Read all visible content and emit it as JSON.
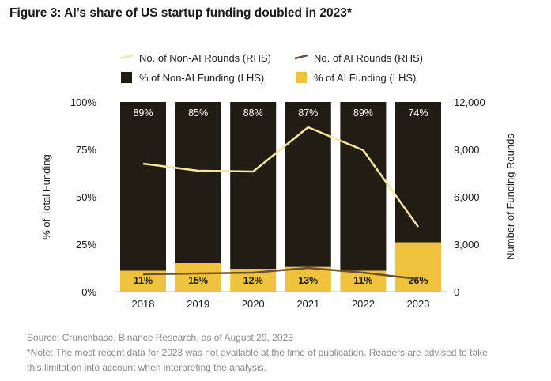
{
  "title": "Figure 3: AI’s share of US startup funding doubled in 2023*",
  "source_note": "Source: Crunchbase, Binance Research, as of August 29, 2023",
  "footnote_line1": "*Note: The most recent data for 2023 was not available at the time of publication. Readers are advised to take",
  "footnote_line2": "this limitation into account when interpreting the analysis.",
  "colors": {
    "non_ai_funding": "#221d14",
    "ai_funding": "#f0c33e",
    "non_ai_rounds": "#f5e4a2",
    "ai_rounds": "#6b5226"
  },
  "chart_data": {
    "type": "bar",
    "stacked": true,
    "categories": [
      "2018",
      "2019",
      "2020",
      "2021",
      "2022",
      "2023"
    ],
    "series": [
      {
        "name": "% of Non-AI Funding (LHS)",
        "type": "bar",
        "axis": "left",
        "values": [
          89,
          85,
          88,
          87,
          89,
          74
        ],
        "labels": [
          "89%",
          "85%",
          "88%",
          "87%",
          "89%",
          "74%"
        ]
      },
      {
        "name": "% of AI Funding (LHS)",
        "type": "bar",
        "axis": "left",
        "values": [
          11,
          15,
          12,
          13,
          11,
          26
        ],
        "labels": [
          "11%",
          "15%",
          "12%",
          "13%",
          "11%",
          "26%"
        ]
      },
      {
        "name": "No. of Non-AI Rounds (RHS)",
        "type": "line",
        "axis": "right",
        "values": [
          8100,
          7650,
          7600,
          10400,
          8950,
          4100
        ]
      },
      {
        "name": "No. of AI Rounds (RHS)",
        "type": "line",
        "axis": "right",
        "values": [
          1100,
          1150,
          1200,
          1500,
          1200,
          800
        ]
      }
    ],
    "legend_order": [
      "No. of Non-AI Rounds (RHS)",
      "No. of AI Rounds (RHS)",
      "% of Non-AI Funding (LHS)",
      "% of AI Funding (LHS)"
    ],
    "legend_position": "top",
    "ylabel_left": "% of Total Funding",
    "ylabel_right": "Number of Funding Rounds",
    "ylim_left": [
      0,
      100
    ],
    "ylim_right": [
      0,
      12000
    ],
    "yticks_left": [
      "0%",
      "25%",
      "50%",
      "75%",
      "100%"
    ],
    "yticks_left_values": [
      0,
      25,
      50,
      75,
      100
    ],
    "yticks_right": [
      "0",
      "3,000",
      "6,000",
      "9,000",
      "12,000"
    ],
    "yticks_right_values": [
      0,
      3000,
      6000,
      9000,
      12000
    ],
    "grid": false
  }
}
